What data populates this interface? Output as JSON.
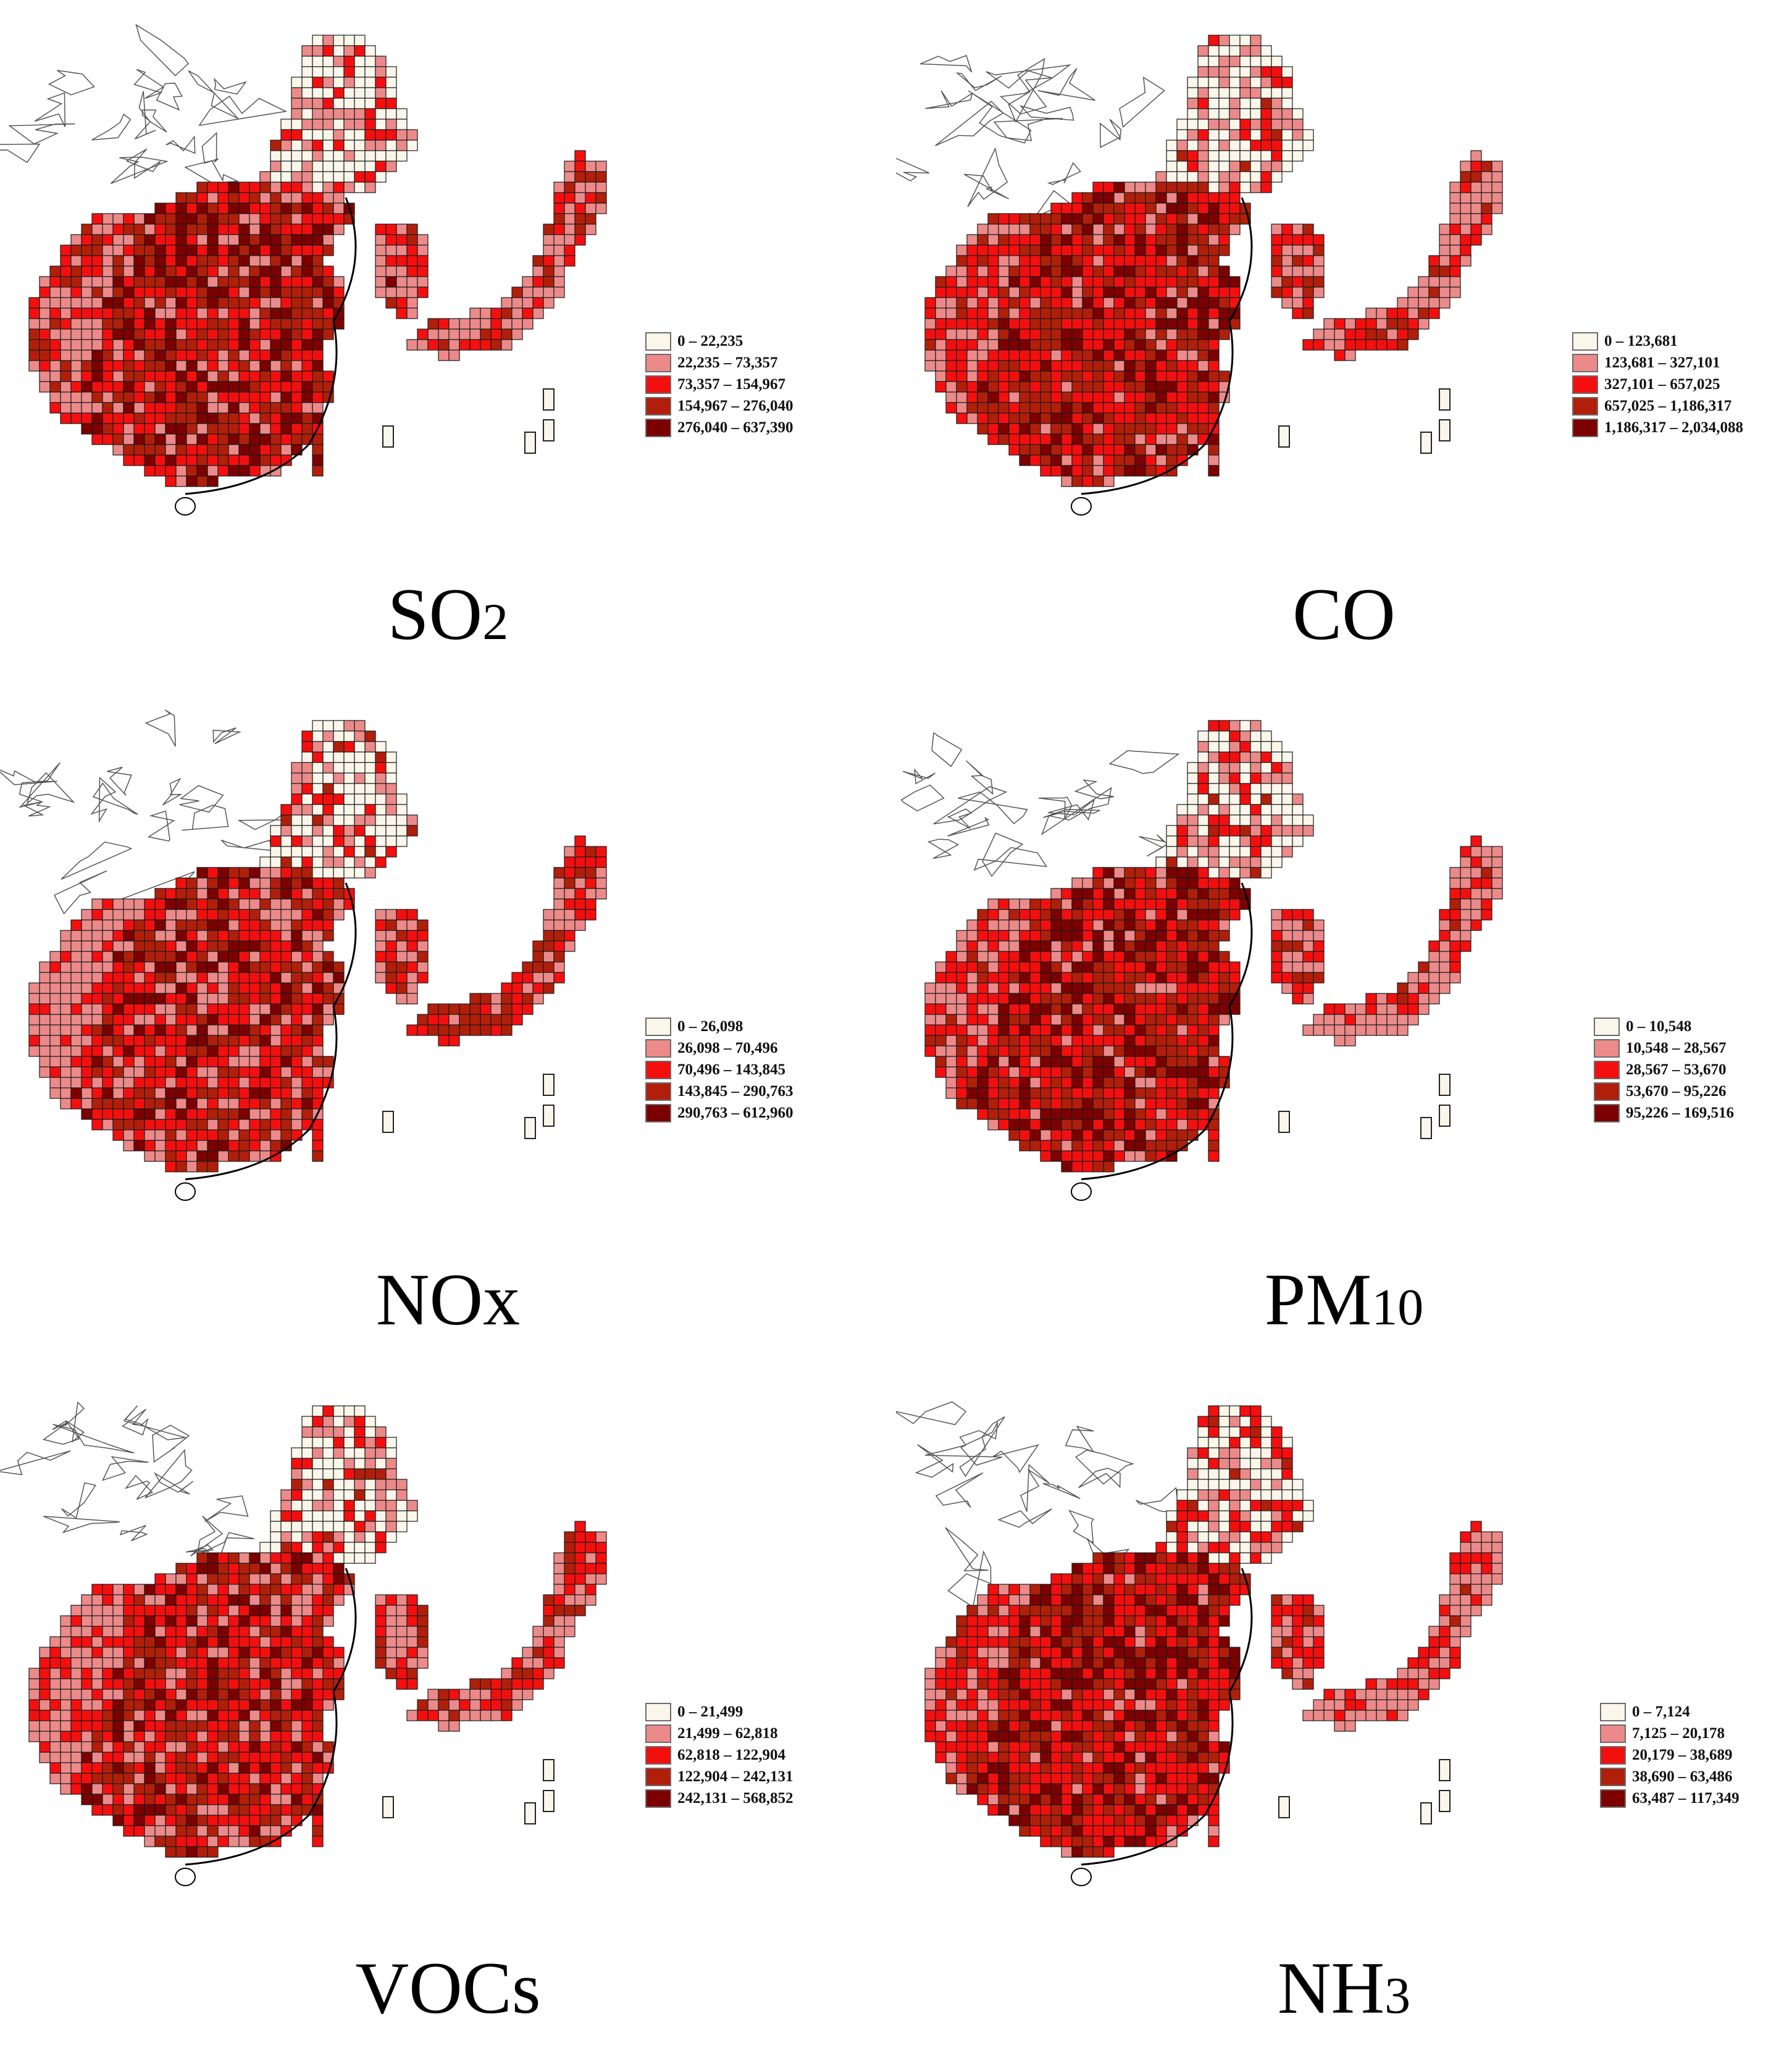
{
  "colors": {
    "class1": "#fbf6ea",
    "class2": "#ec8a8a",
    "class3": "#f40f0f",
    "class4": "#b11f0a",
    "class5": "#7d0000",
    "outline": "#000000",
    "grid": "#1a1a1a"
  },
  "panels": [
    {
      "title_main": "SO",
      "title_sub": "2",
      "legend": [
        "0 – 22,235",
        "22,235 – 73,357",
        "73,357 – 154,967",
        "154,967 – 276,040",
        "276,040 – 637,390"
      ]
    },
    {
      "title_main": "CO",
      "title_sub": "",
      "legend": [
        "0 – 123,681",
        "123,681 – 327,101",
        "327,101 – 657,025",
        "657,025 – 1,186,317",
        "1,186,317 – 2,034,088"
      ]
    },
    {
      "title_main": "NOx",
      "title_sub": "",
      "legend": [
        "0 – 26,098",
        "26,098 – 70,496",
        "70,496 – 143,845",
        "143,845 – 290,763",
        "290,763 – 612,960"
      ]
    },
    {
      "title_main": "PM",
      "title_sub": "10",
      "legend": [
        "0 – 10,548",
        "10,548 – 28,567",
        "28,567 – 53,670",
        "53,670 – 95,226",
        "95,226 – 169,516"
      ]
    },
    {
      "title_main": "VOCs",
      "title_sub": "",
      "legend": [
        "0 – 21,499",
        "21,499 – 62,818",
        "62,818 – 122,904",
        "122,904 – 242,131",
        "242,131 – 568,852"
      ]
    },
    {
      "title_main": "NH",
      "title_sub": "3",
      "legend": [
        "0 – 7,124",
        "7,125 – 20,178",
        "20,179 – 38,689",
        "38,690 – 63,486",
        "63,487 – 117,349"
      ]
    }
  ]
}
